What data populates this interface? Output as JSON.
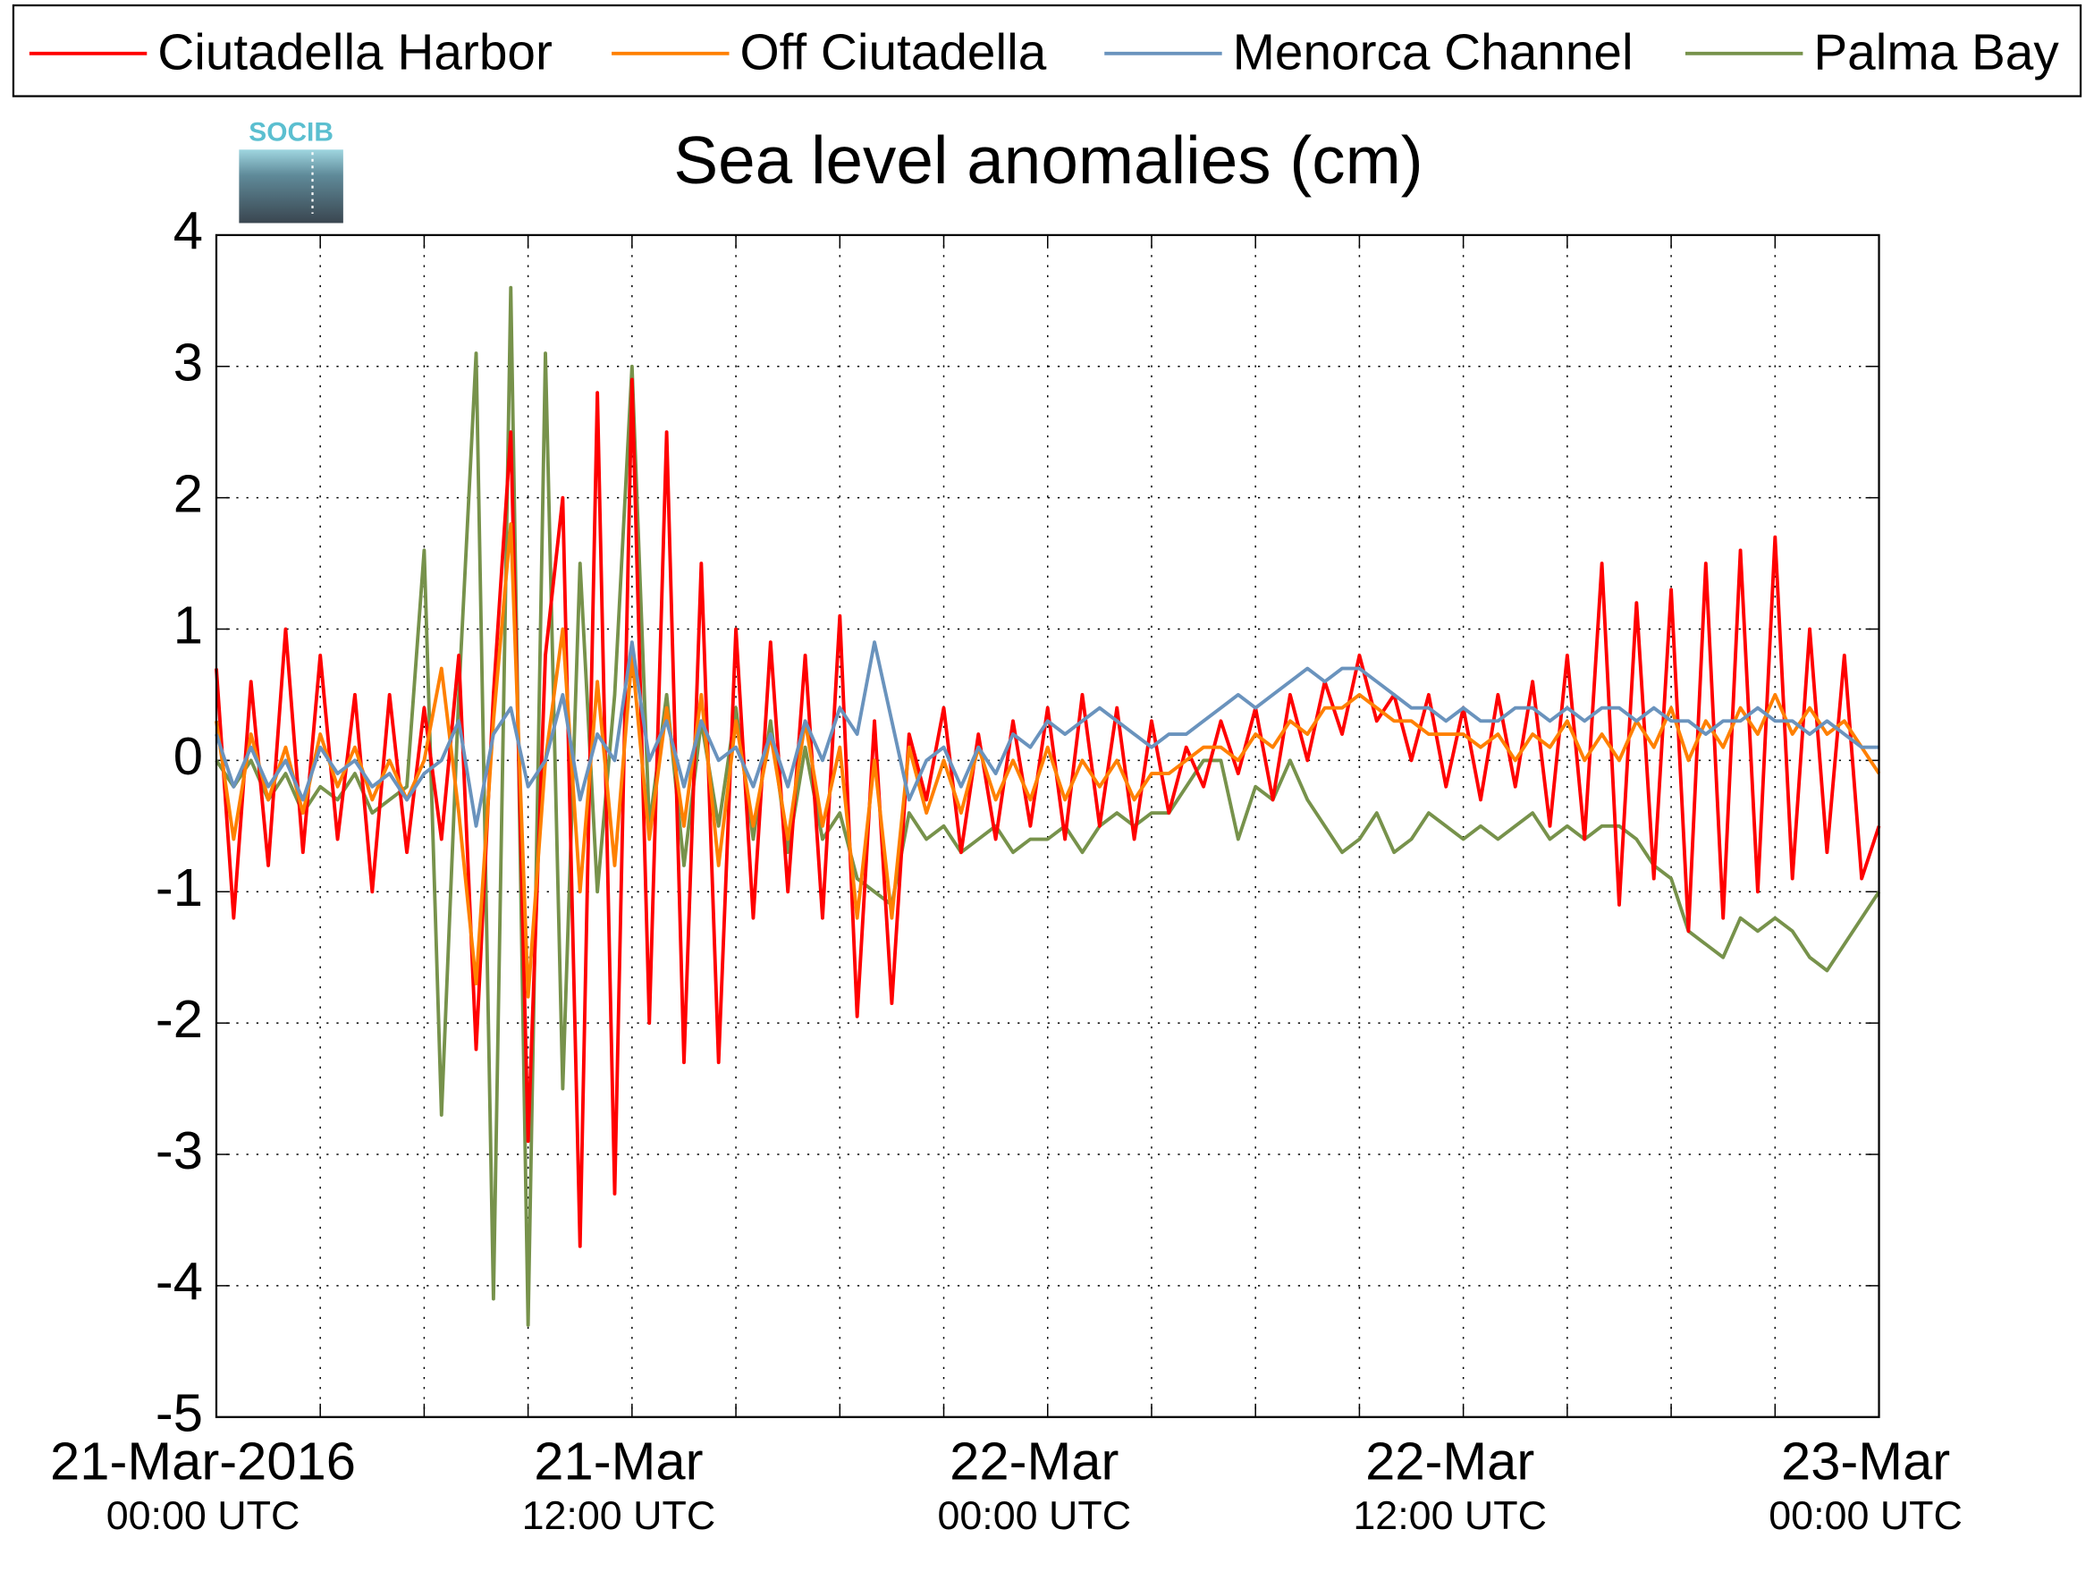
{
  "chart_data": {
    "type": "line",
    "title": "Sea level anomalies (cm)",
    "logo_text": "SOCIB",
    "legend": "top",
    "grid": true,
    "xlim": [
      0,
      48
    ],
    "xticks": [
      {
        "value": 0,
        "label": [
          "21-Mar-2016",
          "00:00 UTC"
        ]
      },
      {
        "value": 12,
        "label": [
          "21-Mar",
          "12:00 UTC"
        ]
      },
      {
        "value": 24,
        "label": [
          "22-Mar",
          "00:00 UTC"
        ]
      },
      {
        "value": 36,
        "label": [
          "22-Mar",
          "12:00 UTC"
        ]
      },
      {
        "value": 48,
        "label": [
          "23-Mar",
          "00:00 UTC"
        ]
      }
    ],
    "xminor": [
      3,
      6,
      9,
      15,
      18,
      21,
      27,
      30,
      33,
      39,
      42,
      45
    ],
    "ylim": [
      -5,
      4
    ],
    "yticks": [
      -5,
      -4,
      -3,
      -2,
      -1,
      0,
      1,
      2,
      3,
      4
    ],
    "x": [
      0,
      0.5,
      1,
      1.5,
      2,
      2.5,
      3,
      3.5,
      4,
      4.5,
      5,
      5.5,
      6,
      6.5,
      7,
      7.5,
      8,
      8.5,
      9,
      9.5,
      10,
      10.5,
      11,
      11.5,
      12,
      12.5,
      13,
      13.5,
      14,
      14.5,
      15,
      15.5,
      16,
      16.5,
      17,
      17.5,
      18,
      18.5,
      19,
      19.5,
      20,
      20.5,
      21,
      21.5,
      22,
      22.5,
      23,
      23.5,
      24,
      24.5,
      25,
      25.5,
      26,
      26.5,
      27,
      27.5,
      28,
      28.5,
      29,
      29.5,
      30,
      30.5,
      31,
      31.5,
      32,
      32.5,
      33,
      33.5,
      34,
      34.5,
      35,
      35.5,
      36,
      36.5,
      37,
      37.5,
      38,
      38.5,
      39,
      39.5,
      40,
      40.5,
      41,
      41.5,
      42,
      42.5,
      43,
      43.5,
      44,
      44.5,
      45,
      45.5,
      46,
      46.5,
      47,
      47.5,
      48
    ],
    "series": [
      {
        "name": "Ciutadella Harbor",
        "color": "#ff0000",
        "values": [
          0.7,
          -1.2,
          0.6,
          -0.8,
          1.0,
          -0.7,
          0.8,
          -0.6,
          0.5,
          -1.0,
          0.5,
          -0.7,
          0.4,
          -0.6,
          0.8,
          -2.2,
          0.5,
          2.5,
          -2.9,
          0.8,
          2.0,
          -3.7,
          2.8,
          -3.3,
          2.9,
          -2.0,
          2.5,
          -2.3,
          1.5,
          -2.3,
          1.0,
          -1.2,
          0.9,
          -1.0,
          0.8,
          -1.2,
          1.1,
          -1.95,
          0.3,
          -1.85,
          0.2,
          -0.3,
          0.4,
          -0.7,
          0.2,
          -0.6,
          0.3,
          -0.5,
          0.4,
          -0.6,
          0.5,
          -0.5,
          0.4,
          -0.6,
          0.3,
          -0.4,
          0.1,
          -0.2,
          0.3,
          -0.1,
          0.4,
          -0.3,
          0.5,
          0.0,
          0.6,
          0.2,
          0.8,
          0.3,
          0.5,
          0.0,
          0.5,
          -0.2,
          0.4,
          -0.3,
          0.5,
          -0.2,
          0.6,
          -0.5,
          0.8,
          -0.6,
          1.5,
          -1.1,
          1.2,
          -0.9,
          1.3,
          -1.3,
          1.5,
          -1.2,
          1.6,
          -1.0,
          1.7,
          -0.9,
          1.0,
          -0.7,
          0.8,
          -0.9,
          -0.5
        ]
      },
      {
        "name": "Off Ciutadella",
        "color": "#ff8000",
        "values": [
          0.3,
          -0.6,
          0.2,
          -0.3,
          0.1,
          -0.4,
          0.2,
          -0.2,
          0.1,
          -0.3,
          0.0,
          -0.3,
          0.0,
          0.7,
          -0.4,
          -1.7,
          0.3,
          1.8,
          -1.8,
          0.0,
          1.0,
          -1.0,
          0.6,
          -0.8,
          0.8,
          -0.6,
          0.4,
          -0.5,
          0.5,
          -0.8,
          0.3,
          -0.5,
          0.2,
          -0.6,
          0.3,
          -0.5,
          0.1,
          -1.2,
          0.0,
          -1.2,
          0.1,
          -0.4,
          0.0,
          -0.4,
          0.1,
          -0.3,
          0.0,
          -0.3,
          0.1,
          -0.3,
          0.0,
          -0.2,
          0.0,
          -0.3,
          -0.1,
          -0.1,
          0.0,
          0.1,
          0.1,
          0.0,
          0.2,
          0.1,
          0.3,
          0.2,
          0.4,
          0.4,
          0.5,
          0.4,
          0.3,
          0.3,
          0.2,
          0.2,
          0.2,
          0.1,
          0.2,
          0.0,
          0.2,
          0.1,
          0.3,
          0.0,
          0.2,
          0.0,
          0.3,
          0.1,
          0.4,
          0.0,
          0.3,
          0.1,
          0.4,
          0.2,
          0.5,
          0.2,
          0.4,
          0.2,
          0.3,
          0.1,
          -0.1
        ]
      },
      {
        "name": "Menorca Channel",
        "color": "#6a93bd",
        "values": [
          0.2,
          -0.2,
          0.1,
          -0.2,
          0.0,
          -0.3,
          0.1,
          -0.1,
          0.0,
          -0.2,
          -0.1,
          -0.3,
          -0.1,
          0.0,
          0.3,
          -0.5,
          0.2,
          0.4,
          -0.2,
          0.0,
          0.5,
          -0.3,
          0.2,
          0.0,
          0.9,
          0.0,
          0.3,
          -0.2,
          0.3,
          0.0,
          0.1,
          -0.2,
          0.2,
          -0.2,
          0.3,
          0.0,
          0.4,
          0.2,
          0.9,
          0.3,
          -0.3,
          0.0,
          0.1,
          -0.2,
          0.1,
          -0.1,
          0.2,
          0.1,
          0.3,
          0.2,
          0.3,
          0.4,
          0.3,
          0.2,
          0.1,
          0.2,
          0.2,
          0.3,
          0.4,
          0.5,
          0.4,
          0.5,
          0.6,
          0.7,
          0.6,
          0.7,
          0.7,
          0.6,
          0.5,
          0.4,
          0.4,
          0.3,
          0.4,
          0.3,
          0.3,
          0.4,
          0.4,
          0.3,
          0.4,
          0.3,
          0.4,
          0.4,
          0.3,
          0.4,
          0.3,
          0.3,
          0.2,
          0.3,
          0.3,
          0.4,
          0.3,
          0.3,
          0.2,
          0.3,
          0.2,
          0.1,
          0.1
        ]
      },
      {
        "name": "Palma Bay",
        "color": "#77924b",
        "values": [
          0.0,
          -0.2,
          0.0,
          -0.3,
          -0.1,
          -0.4,
          -0.2,
          -0.3,
          -0.1,
          -0.4,
          -0.3,
          -0.2,
          1.6,
          -2.7,
          0.5,
          3.1,
          -4.1,
          3.6,
          -4.3,
          3.1,
          -2.5,
          1.5,
          -1.0,
          0.5,
          3.0,
          -0.5,
          0.5,
          -0.8,
          0.3,
          -0.5,
          0.4,
          -0.6,
          0.3,
          -0.7,
          0.1,
          -0.6,
          -0.4,
          -0.9,
          -1.0,
          -1.1,
          -0.4,
          -0.6,
          -0.5,
          -0.7,
          -0.6,
          -0.5,
          -0.7,
          -0.6,
          -0.6,
          -0.5,
          -0.7,
          -0.5,
          -0.4,
          -0.5,
          -0.4,
          -0.4,
          -0.2,
          0.0,
          0.0,
          -0.6,
          -0.2,
          -0.3,
          0.0,
          -0.3,
          -0.5,
          -0.7,
          -0.6,
          -0.4,
          -0.7,
          -0.6,
          -0.4,
          -0.5,
          -0.6,
          -0.5,
          -0.6,
          -0.5,
          -0.4,
          -0.6,
          -0.5,
          -0.6,
          -0.5,
          -0.5,
          -0.6,
          -0.8,
          -0.9,
          -1.3,
          -1.4,
          -1.5,
          -1.2,
          -1.3,
          -1.2,
          -1.3,
          -1.5,
          -1.6,
          -1.4,
          -1.2,
          -1.0
        ]
      }
    ]
  }
}
